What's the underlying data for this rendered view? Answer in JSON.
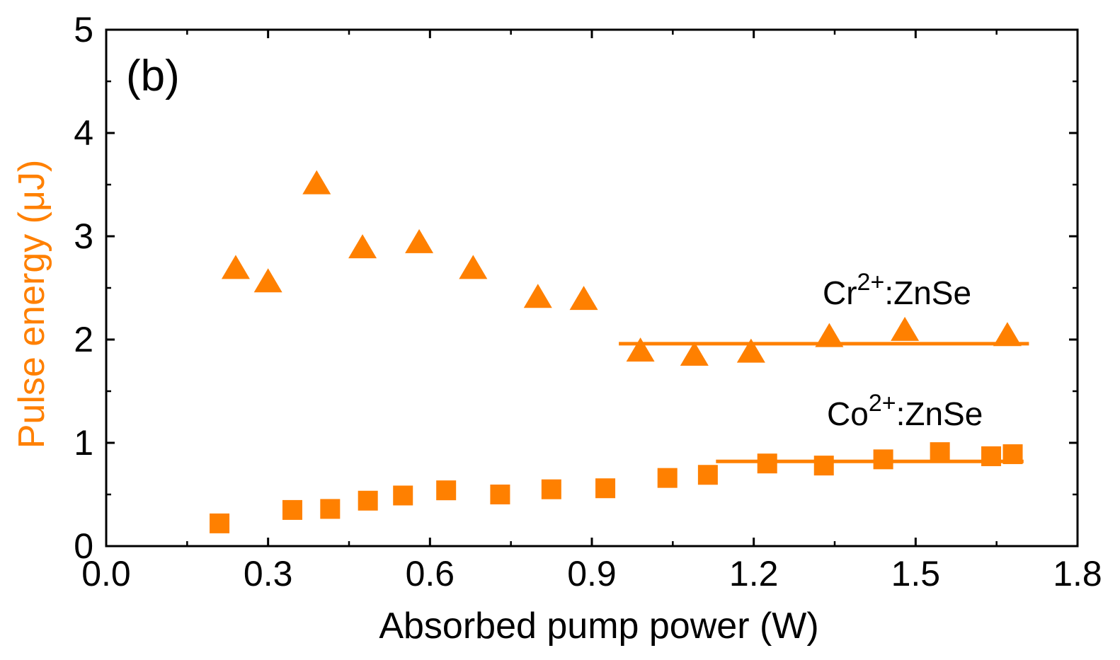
{
  "chart_data": {
    "type": "scatter",
    "panel_label": "(b)",
    "xlabel": "Absorbed pump power (W)",
    "ylabel": "Pulse energy (μJ)",
    "xlim": [
      0.0,
      1.8
    ],
    "ylim": [
      0,
      5
    ],
    "x_ticks": [
      "0.0",
      "0.3",
      "0.6",
      "0.9",
      "1.2",
      "1.5",
      "1.8"
    ],
    "y_ticks": [
      "0",
      "1",
      "2",
      "3",
      "4",
      "5"
    ],
    "grid": false,
    "series": [
      {
        "name": "Cr2+:ZnSe",
        "label_main": "Cr",
        "label_sup": "2+",
        "label_rest": ":ZnSe",
        "marker": "triangle",
        "color": "#FF8000",
        "x": [
          0.24,
          0.3,
          0.39,
          0.475,
          0.58,
          0.68,
          0.8,
          0.885,
          0.99,
          1.09,
          1.195,
          1.34,
          1.48,
          1.67
        ],
        "y": [
          2.68,
          2.55,
          3.5,
          2.88,
          2.93,
          2.68,
          2.4,
          2.38,
          1.88,
          1.84,
          1.87,
          2.02,
          2.08,
          2.03
        ],
        "fit": {
          "x": [
            0.95,
            1.71
          ],
          "y": [
            1.96,
            1.96
          ]
        }
      },
      {
        "name": "Co2+:ZnSe",
        "label_main": "Co",
        "label_sup": "2+",
        "label_rest": ":ZnSe",
        "marker": "square",
        "color": "#FF8000",
        "x": [
          0.21,
          0.345,
          0.415,
          0.485,
          0.55,
          0.63,
          0.73,
          0.825,
          0.925,
          1.04,
          1.115,
          1.225,
          1.33,
          1.44,
          1.545,
          1.64,
          1.68
        ],
        "y": [
          0.22,
          0.35,
          0.36,
          0.44,
          0.49,
          0.54,
          0.5,
          0.55,
          0.56,
          0.66,
          0.69,
          0.8,
          0.78,
          0.84,
          0.91,
          0.87,
          0.89
        ],
        "fit": {
          "x": [
            1.13,
            1.7
          ],
          "y": [
            0.82,
            0.82
          ]
        }
      }
    ],
    "axis_title_color_y": "#FF8000",
    "axis_title_color_x": "#000000"
  }
}
